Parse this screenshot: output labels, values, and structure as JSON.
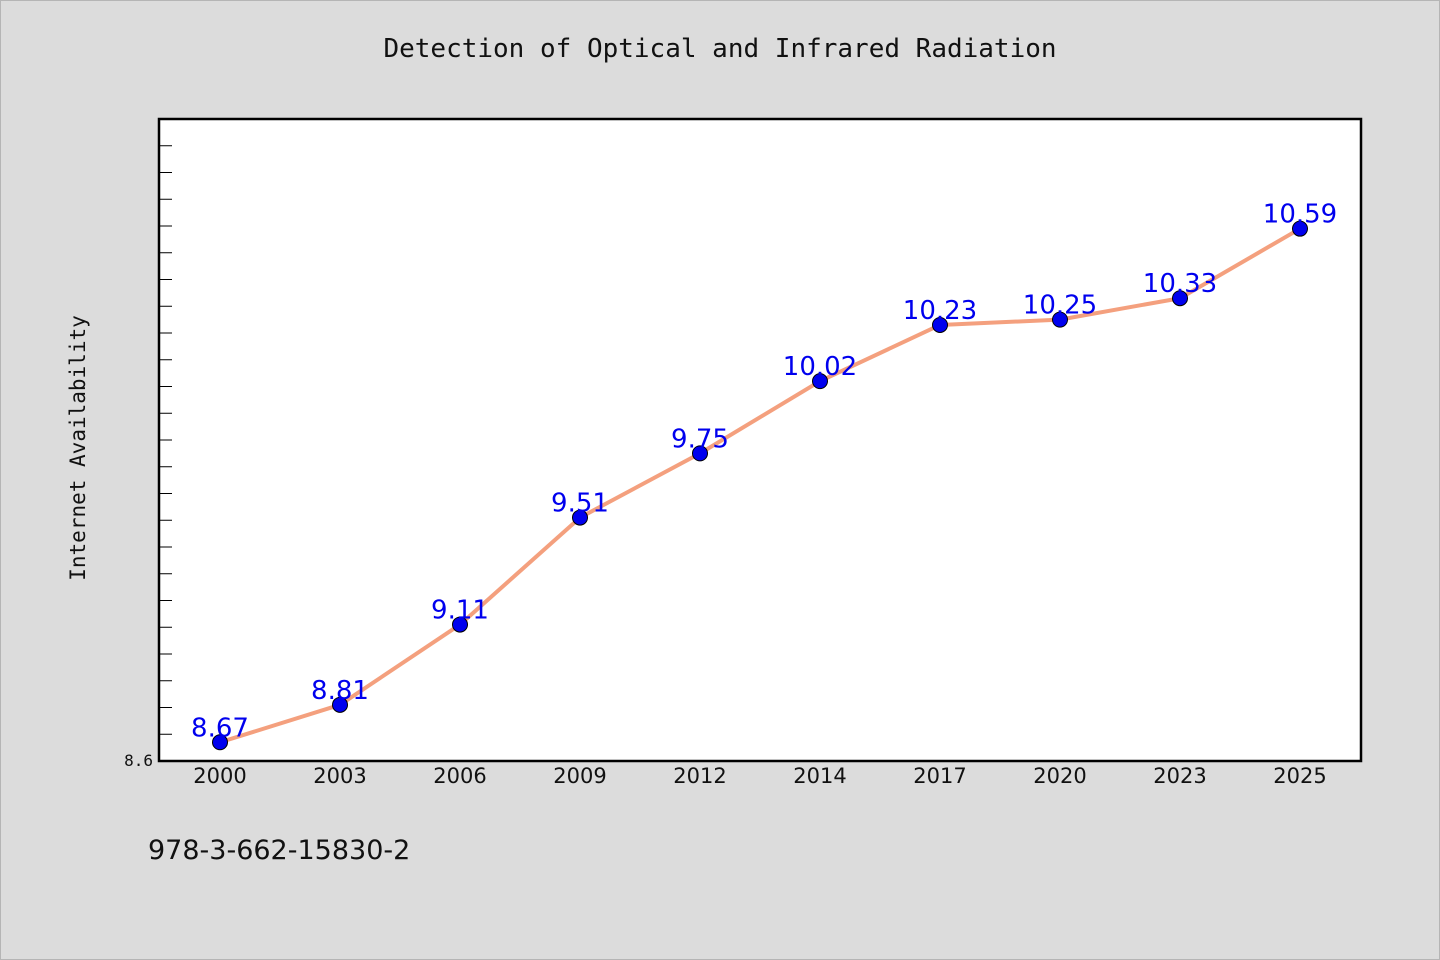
{
  "footer": {
    "code": "978-3-662-15830-2"
  },
  "chart_data": {
    "type": "line",
    "title": "Detection of Optical and Infrared Radiation",
    "xlabel": "",
    "ylabel": "Internet Availability",
    "categories": [
      "2000",
      "2003",
      "2006",
      "2009",
      "2012",
      "2014",
      "2017",
      "2020",
      "2023",
      "2025"
    ],
    "series": [
      {
        "values": [
          8.67,
          8.81,
          9.11,
          9.51,
          9.75,
          10.02,
          10.23,
          10.25,
          10.33,
          10.59
        ]
      }
    ],
    "data_labels": [
      "8.67",
      "8.81",
      "9.11",
      "9.51",
      "9.75",
      "10.02",
      "10.23",
      "10.25",
      "10.33",
      "10.59"
    ],
    "ylim": [
      8.6,
      11.0
    ],
    "y_tick_label": "8.6",
    "grid": false,
    "colors": {
      "line": "#f4a07e",
      "marker": "#0000ee",
      "label": "#0000ee",
      "background": "#dcdcdc",
      "plot_bg": "#ffffff"
    }
  }
}
